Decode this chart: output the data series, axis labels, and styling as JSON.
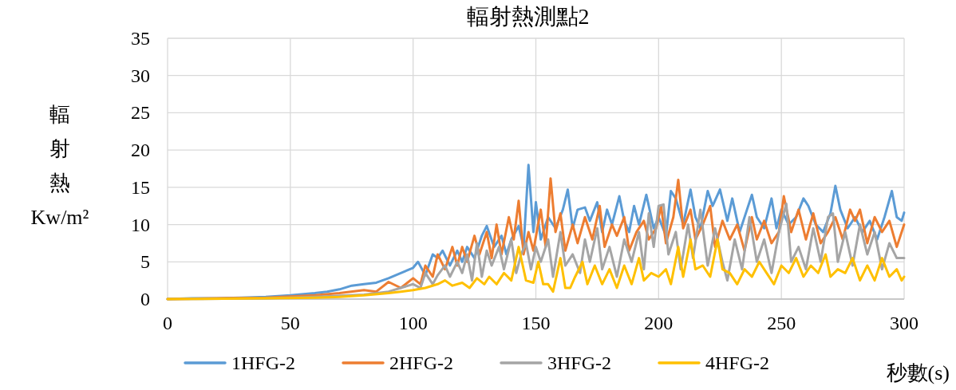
{
  "chart_data": {
    "type": "line",
    "title": "輻射熱測點2",
    "xlabel": "秒數(s)",
    "ylabel": "輻射熱 Kw/m²",
    "xlim": [
      0,
      300
    ],
    "xticks": [
      0,
      50,
      100,
      150,
      200,
      250,
      300
    ],
    "ylim": [
      0,
      35
    ],
    "yticks": [
      0,
      5,
      10,
      15,
      20,
      25,
      30,
      35
    ],
    "grid": true,
    "legend": "bottom",
    "series": [
      {
        "name": "1HFG-2",
        "color": "#5b9bd5",
        "x": [
          0,
          10,
          20,
          30,
          40,
          50,
          60,
          65,
          70,
          75,
          80,
          85,
          90,
          95,
          100,
          102,
          105,
          108,
          110,
          112,
          115,
          118,
          120,
          122,
          125,
          128,
          130,
          133,
          136,
          138,
          140,
          143,
          145,
          147,
          149,
          150,
          152,
          155,
          158,
          161,
          163,
          165,
          167,
          170,
          172,
          175,
          177,
          179,
          181,
          184,
          186,
          188,
          190,
          192,
          195,
          198,
          200,
          203,
          205,
          207,
          210,
          213,
          215,
          217,
          220,
          222,
          225,
          228,
          230,
          233,
          236,
          238,
          240,
          243,
          246,
          248,
          250,
          253,
          256,
          259,
          261,
          264,
          267,
          270,
          272,
          274,
          277,
          280,
          283,
          286,
          289,
          292,
          295,
          297,
          299,
          300
        ],
        "values": [
          0,
          0.1,
          0.1,
          0.2,
          0.3,
          0.5,
          0.8,
          1.0,
          1.3,
          1.8,
          2.0,
          2.2,
          2.8,
          3.5,
          4.2,
          5.0,
          3.2,
          6.0,
          5.5,
          6.5,
          4.5,
          6.5,
          5.0,
          7.0,
          5.5,
          8.5,
          9.8,
          7.0,
          8.5,
          6.0,
          8.0,
          9.8,
          7.0,
          18.0,
          9.0,
          13.0,
          8.0,
          11.0,
          9.5,
          12.0,
          14.7,
          9.5,
          12.0,
          12.3,
          10.5,
          13.0,
          9.0,
          12.0,
          10.0,
          13.8,
          10.5,
          9.0,
          12.5,
          10.0,
          14.0,
          9.5,
          11.0,
          8.5,
          14.5,
          13.5,
          10.0,
          14.7,
          11.0,
          9.5,
          14.5,
          12.5,
          14.7,
          10.5,
          13.5,
          9.0,
          12.0,
          14.0,
          11.0,
          9.5,
          13.5,
          9.5,
          12.0,
          10.0,
          11.0,
          13.5,
          12.5,
          10.0,
          9.0,
          11.5,
          15.2,
          12.0,
          9.5,
          11.0,
          9.0,
          10.5,
          8.0,
          11.0,
          14.5,
          11.0,
          10.5,
          11.6
        ]
      },
      {
        "name": "2HFG-2",
        "color": "#ed7d31",
        "x": [
          0,
          20,
          40,
          60,
          70,
          80,
          85,
          90,
          95,
          100,
          103,
          105,
          108,
          110,
          113,
          116,
          118,
          120,
          122,
          125,
          127,
          130,
          132,
          134,
          136,
          139,
          141,
          143,
          145,
          147,
          149,
          152,
          154,
          156,
          158,
          160,
          162,
          165,
          167,
          170,
          173,
          176,
          178,
          181,
          183,
          186,
          188,
          191,
          194,
          196,
          199,
          201,
          203,
          206,
          208,
          210,
          213,
          215,
          218,
          221,
          223,
          226,
          229,
          232,
          235,
          238,
          240,
          243,
          246,
          249,
          251,
          254,
          257,
          260,
          263,
          266,
          269,
          272,
          275,
          278,
          280,
          282,
          285,
          288,
          291,
          294,
          297,
          300
        ],
        "values": [
          0,
          0.1,
          0.2,
          0.5,
          0.8,
          1.2,
          1.0,
          2.3,
          1.5,
          2.8,
          2.0,
          4.5,
          3.0,
          6.0,
          4.0,
          7.0,
          4.5,
          7.0,
          5.0,
          8.5,
          6.0,
          9.0,
          5.5,
          10.0,
          6.0,
          11.0,
          8.0,
          13.2,
          6.0,
          9.0,
          6.5,
          12.0,
          7.0,
          16.2,
          9.0,
          11.5,
          6.5,
          10.0,
          7.5,
          11.0,
          8.0,
          12.5,
          7.0,
          10.0,
          8.5,
          11.0,
          6.5,
          9.0,
          10.5,
          8.0,
          9.5,
          12.5,
          7.5,
          11.0,
          16.0,
          9.5,
          12.0,
          8.0,
          10.0,
          12.5,
          7.0,
          10.5,
          8.0,
          10.0,
          6.5,
          11.0,
          8.0,
          10.5,
          7.5,
          9.0,
          13.8,
          9.0,
          12.0,
          8.0,
          11.5,
          7.5,
          9.0,
          11.0,
          8.0,
          12.0,
          10.5,
          12.0,
          7.5,
          11.0,
          9.0,
          10.5,
          7.0,
          10.0
        ]
      },
      {
        "name": "3HFG-2",
        "color": "#a5a5a5",
        "x": [
          0,
          40,
          60,
          80,
          90,
          95,
          100,
          103,
          105,
          108,
          110,
          113,
          115,
          118,
          120,
          122,
          124,
          126,
          128,
          130,
          132,
          135,
          137,
          140,
          142,
          144,
          146,
          148,
          150,
          152,
          155,
          157,
          160,
          162,
          165,
          168,
          170,
          172,
          175,
          177,
          180,
          183,
          186,
          189,
          192,
          194,
          196,
          198,
          200,
          202,
          204,
          207,
          209,
          212,
          214,
          217,
          220,
          223,
          226,
          228,
          231,
          234,
          237,
          240,
          243,
          246,
          249,
          252,
          254,
          257,
          260,
          263,
          266,
          269,
          271,
          273,
          276,
          279,
          282,
          285,
          288,
          291,
          294,
          297,
          300
        ],
        "values": [
          0,
          0.1,
          0.3,
          0.6,
          1.0,
          1.5,
          2.0,
          1.5,
          3.5,
          2.0,
          3.2,
          4.5,
          3.0,
          5.0,
          3.5,
          6.0,
          2.5,
          7.5,
          3.0,
          6.5,
          4.5,
          7.0,
          4.0,
          8.0,
          3.5,
          6.0,
          7.5,
          4.0,
          7.0,
          5.0,
          8.0,
          3.0,
          9.0,
          4.5,
          6.0,
          3.5,
          8.0,
          5.0,
          9.5,
          4.0,
          7.0,
          3.0,
          8.0,
          5.0,
          9.0,
          4.0,
          11.5,
          7.0,
          12.5,
          12.7,
          6.0,
          9.0,
          4.0,
          10.0,
          5.5,
          12.0,
          4.5,
          9.5,
          5.0,
          2.5,
          8.0,
          4.0,
          11.0,
          5.0,
          8.0,
          3.5,
          9.0,
          12.8,
          5.0,
          7.0,
          4.0,
          9.5,
          5.0,
          11.0,
          11.5,
          5.0,
          9.0,
          4.5,
          10.0,
          6.0,
          9.0,
          4.0,
          7.5,
          5.5,
          5.5
        ]
      },
      {
        "name": "4HFG-2",
        "color": "#ffc000",
        "x": [
          0,
          40,
          60,
          70,
          80,
          90,
          95,
          100,
          105,
          110,
          113,
          116,
          120,
          123,
          126,
          129,
          131,
          134,
          137,
          140,
          143,
          146,
          149,
          151,
          153,
          155,
          157,
          160,
          162,
          164,
          166,
          169,
          171,
          174,
          177,
          180,
          183,
          186,
          189,
          192,
          194,
          197,
          200,
          203,
          205,
          208,
          210,
          213,
          215,
          218,
          221,
          224,
          226,
          229,
          232,
          235,
          238,
          241,
          244,
          247,
          250,
          253,
          256,
          259,
          262,
          265,
          268,
          270,
          273,
          276,
          279,
          282,
          285,
          288,
          291,
          294,
          297,
          299,
          300
        ],
        "values": [
          0,
          0.1,
          0.2,
          0.3,
          0.5,
          0.8,
          1.0,
          1.2,
          1.5,
          2.0,
          2.5,
          1.8,
          2.2,
          1.5,
          2.8,
          2.0,
          3.0,
          2.0,
          3.5,
          2.5,
          7.0,
          2.5,
          2.2,
          5.0,
          2.0,
          2.0,
          1.0,
          5.5,
          1.5,
          1.5,
          3.0,
          5.0,
          2.0,
          4.5,
          2.0,
          4.0,
          1.5,
          4.5,
          2.0,
          5.5,
          2.5,
          3.5,
          3.0,
          4.0,
          2.0,
          7.0,
          3.0,
          8.0,
          4.0,
          4.5,
          3.0,
          8.0,
          4.0,
          3.5,
          2.0,
          4.0,
          3.0,
          5.0,
          3.5,
          2.0,
          4.5,
          3.5,
          5.5,
          3.0,
          4.5,
          3.5,
          6.0,
          3.0,
          4.0,
          3.5,
          5.5,
          2.5,
          4.5,
          2.5,
          5.5,
          3.0,
          4.0,
          2.5,
          3.0
        ]
      }
    ]
  }
}
